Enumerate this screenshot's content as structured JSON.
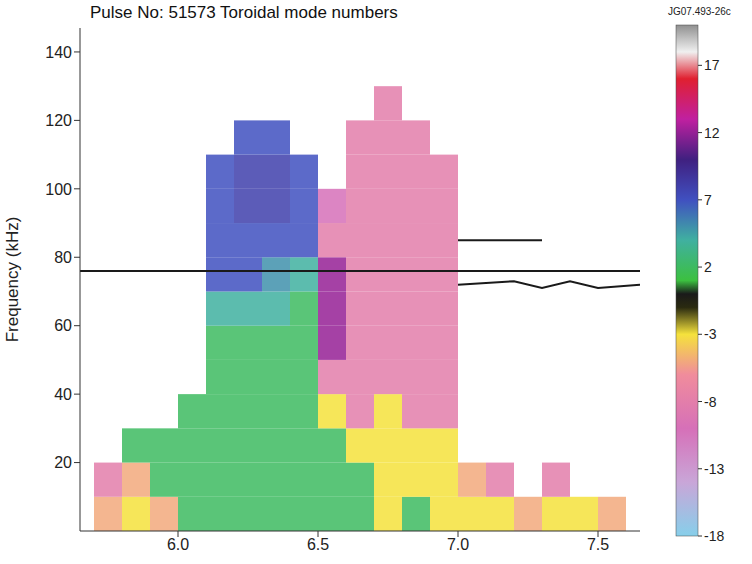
{
  "chart_data": {
    "type": "heatmap",
    "title": "Pulse No: 51573 Toroidal mode numbers",
    "annotation": "JG07.493-26c",
    "ylabel": "Frequency (kHz)",
    "xlim": [
      5.65,
      7.65
    ],
    "xticks": [
      {
        "value": 6,
        "label": "6.0"
      },
      {
        "value": 6.5,
        "label": "6.5"
      },
      {
        "value": 7,
        "label": "7.0"
      },
      {
        "value": 7.5,
        "label": "7.5"
      }
    ],
    "ylim": [
      0,
      147
    ],
    "yticks": [
      20,
      40,
      60,
      80,
      100,
      120,
      140
    ],
    "x_edges": [
      5.7,
      5.8,
      5.9,
      6.0,
      6.1,
      6.2,
      6.3,
      6.4,
      6.5,
      6.6,
      6.7,
      6.8,
      6.9,
      7.0,
      7.1,
      7.2,
      7.3,
      7.4,
      7.5,
      7.6
    ],
    "y_edges": [
      0,
      10,
      20,
      30,
      40,
      50,
      60,
      70,
      80,
      90,
      100,
      110,
      120,
      130,
      140
    ],
    "z": [
      [
        -5,
        -3,
        -5,
        2,
        2,
        2,
        2,
        2,
        2,
        2,
        -3,
        2,
        -3,
        -3,
        -3,
        -5,
        -3,
        -3,
        -5
      ],
      [
        -8,
        -5,
        2,
        2,
        2,
        2,
        2,
        2,
        2,
        2,
        -3,
        -3,
        -3,
        -5,
        -8,
        null,
        -8,
        null,
        null
      ],
      [
        null,
        2,
        2,
        2,
        2,
        2,
        2,
        2,
        2,
        -3,
        -3,
        -3,
        -3,
        null,
        null,
        null,
        null,
        null,
        null
      ],
      [
        null,
        null,
        null,
        2,
        2,
        2,
        2,
        2,
        -3,
        -8,
        -3,
        -8,
        -8,
        null,
        null,
        null,
        null,
        null,
        null
      ],
      [
        null,
        null,
        null,
        null,
        2,
        2,
        2,
        2,
        -8,
        -8,
        -8,
        -8,
        -8,
        null,
        null,
        null,
        null,
        null,
        null
      ],
      [
        null,
        null,
        null,
        null,
        2,
        2,
        2,
        2,
        12,
        -8,
        -8,
        -8,
        -8,
        null,
        null,
        null,
        null,
        null,
        null
      ],
      [
        null,
        null,
        null,
        null,
        4,
        4,
        4,
        2,
        12,
        -8,
        -8,
        -8,
        -8,
        null,
        null,
        null,
        null,
        null,
        null
      ],
      [
        null,
        null,
        null,
        null,
        7,
        7,
        5,
        4,
        12,
        -8,
        -8,
        -8,
        -8,
        null,
        null,
        null,
        null,
        null,
        null
      ],
      [
        null,
        null,
        null,
        null,
        7,
        7,
        7,
        7,
        -8,
        -8,
        -8,
        -8,
        -8,
        null,
        null,
        null,
        null,
        null,
        null
      ],
      [
        null,
        null,
        null,
        null,
        7,
        8,
        8,
        7,
        -10,
        -8,
        -8,
        -8,
        -8,
        null,
        null,
        null,
        null,
        null,
        null
      ],
      [
        null,
        null,
        null,
        null,
        7,
        8,
        8,
        7,
        null,
        -8,
        -8,
        -8,
        -8,
        null,
        null,
        null,
        null,
        null,
        null
      ],
      [
        null,
        null,
        null,
        null,
        null,
        7,
        7,
        null,
        null,
        -8,
        -8,
        -8,
        null,
        null,
        null,
        null,
        null,
        null,
        null
      ],
      [
        null,
        null,
        null,
        null,
        null,
        null,
        null,
        null,
        null,
        null,
        -8,
        null,
        null,
        null,
        null,
        null,
        null,
        null,
        null
      ],
      [
        null,
        null,
        null,
        null,
        null,
        null,
        null,
        null,
        null,
        null,
        null,
        null,
        null,
        null,
        null,
        null,
        null,
        null,
        null
      ]
    ],
    "lines": [
      {
        "x": [
          5.65,
          7.65
        ],
        "y": [
          76,
          76
        ],
        "n": 0
      },
      {
        "x": [
          7.0,
          7.2,
          7.3,
          7.4,
          7.5,
          7.65
        ],
        "y": [
          72,
          73,
          71,
          73,
          71,
          72
        ],
        "n": 0
      },
      {
        "x": [
          7.0,
          7.3
        ],
        "y": [
          85,
          85
        ],
        "n": 0
      }
    ],
    "colorbar": {
      "range": [
        -18,
        20
      ],
      "ticks": [
        17,
        12,
        7,
        2,
        -3,
        -8,
        -13,
        -18
      ],
      "stops": [
        {
          "value": -18,
          "color": "#87cfea"
        },
        {
          "value": -14,
          "color": "#c9a6d8"
        },
        {
          "value": -10,
          "color": "#d670b8"
        },
        {
          "value": -6,
          "color": "#f08c9c"
        },
        {
          "value": -3,
          "color": "#f5e23c"
        },
        {
          "value": -1,
          "color": "#2a2a10"
        },
        {
          "value": 0,
          "color": "#1a1a1a"
        },
        {
          "value": 1,
          "color": "#3cc040"
        },
        {
          "value": 4,
          "color": "#40b0a0"
        },
        {
          "value": 7,
          "color": "#4050c0"
        },
        {
          "value": 10,
          "color": "#402080"
        },
        {
          "value": 13,
          "color": "#c020a0"
        },
        {
          "value": 16,
          "color": "#e02030"
        },
        {
          "value": 18,
          "color": "#f0f0f0"
        },
        {
          "value": 20,
          "color": "#909090"
        }
      ]
    }
  }
}
